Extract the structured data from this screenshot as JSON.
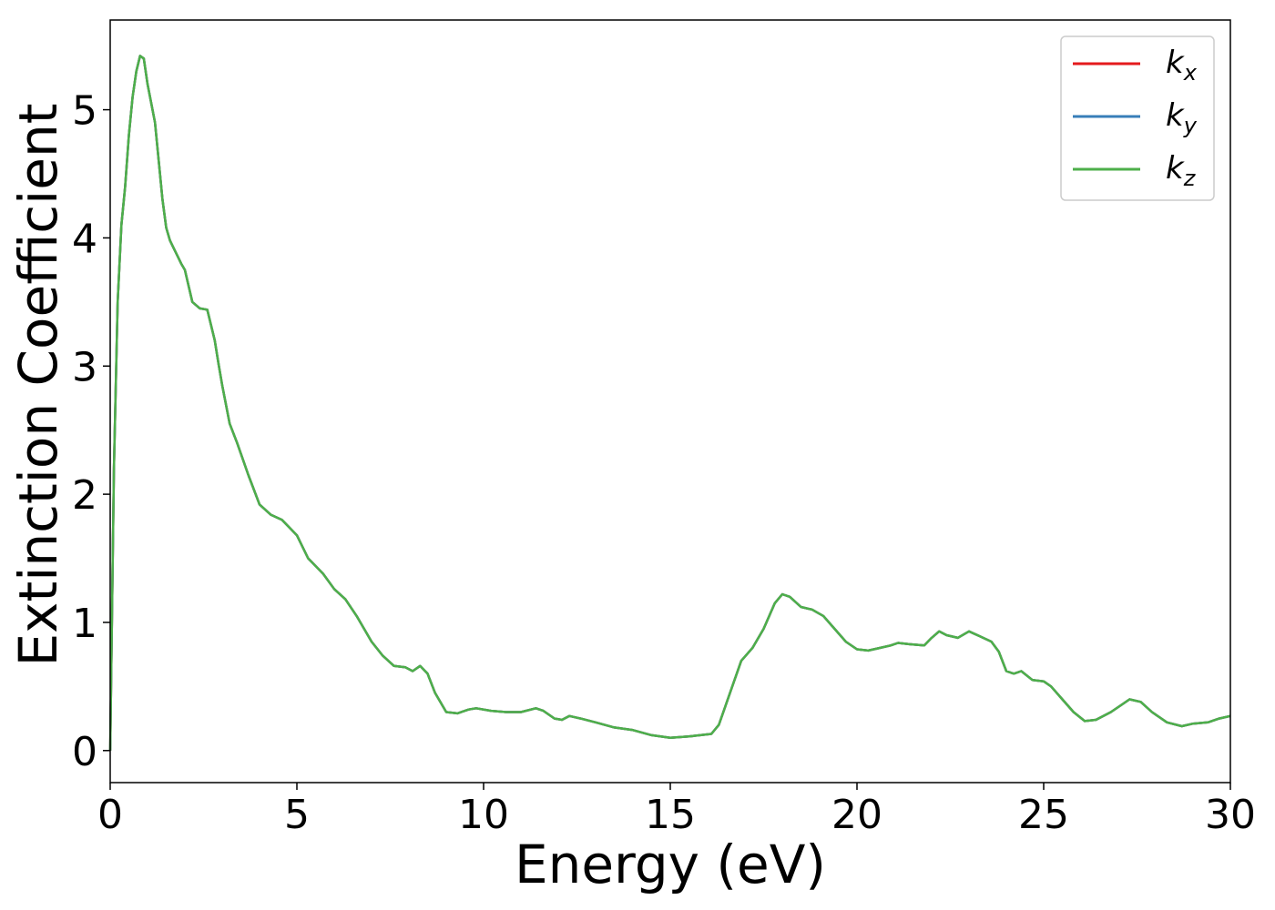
{
  "chart_data": {
    "type": "line",
    "xlabel": "Energy (eV)",
    "ylabel": "Extinction Coefficient",
    "xlim": [
      0,
      30
    ],
    "ylim": [
      -0.25,
      5.7
    ],
    "xticks": [
      0,
      5,
      10,
      15,
      20,
      25,
      30
    ],
    "yticks": [
      0,
      1,
      2,
      3,
      4,
      5
    ],
    "grid": false,
    "legend_position": "top-right",
    "series": [
      {
        "name": "k",
        "subscript": "x",
        "color": "#e41a1c",
        "values_ref": "shared"
      },
      {
        "name": "k",
        "subscript": "y",
        "color": "#377eb8",
        "values_ref": "shared"
      },
      {
        "name": "k",
        "subscript": "z",
        "color": "#4daf4a",
        "values_ref": "shared"
      }
    ],
    "x": [
      0,
      0.1,
      0.2,
      0.3,
      0.4,
      0.5,
      0.6,
      0.7,
      0.8,
      0.9,
      1.0,
      1.1,
      1.2,
      1.3,
      1.4,
      1.5,
      1.6,
      1.7,
      1.8,
      1.9,
      2.0,
      2.2,
      2.4,
      2.6,
      2.8,
      2.9,
      3.0,
      3.2,
      3.4,
      3.7,
      4.0,
      4.3,
      4.6,
      5.0,
      5.3,
      5.7,
      6.0,
      6.3,
      6.6,
      7.0,
      7.3,
      7.6,
      7.9,
      8.1,
      8.3,
      8.5,
      8.7,
      9.0,
      9.3,
      9.6,
      9.8,
      10.2,
      10.6,
      11.0,
      11.4,
      11.6,
      11.9,
      12.1,
      12.3,
      12.6,
      13.0,
      13.5,
      14.0,
      14.5,
      15.0,
      15.5,
      15.8,
      16.1,
      16.3,
      16.6,
      16.9,
      17.2,
      17.5,
      17.8,
      18.0,
      18.2,
      18.5,
      18.8,
      19.1,
      19.4,
      19.7,
      20.0,
      20.3,
      20.6,
      20.9,
      21.1,
      21.4,
      21.8,
      22.0,
      22.2,
      22.4,
      22.7,
      23.0,
      23.3,
      23.6,
      23.8,
      24.0,
      24.2,
      24.4,
      24.7,
      25.0,
      25.2,
      25.5,
      25.8,
      26.1,
      26.4,
      26.8,
      27.1,
      27.3,
      27.6,
      27.9,
      28.3,
      28.7,
      29.0,
      29.4,
      29.7,
      30.0
    ],
    "values": [
      0.0,
      2.2,
      3.5,
      4.1,
      4.4,
      4.8,
      5.1,
      5.3,
      5.42,
      5.4,
      5.2,
      5.05,
      4.9,
      4.6,
      4.3,
      4.08,
      3.98,
      3.92,
      3.86,
      3.8,
      3.75,
      3.5,
      3.45,
      3.44,
      3.2,
      3.02,
      2.85,
      2.55,
      2.4,
      2.15,
      1.92,
      1.84,
      1.8,
      1.68,
      1.5,
      1.38,
      1.26,
      1.18,
      1.05,
      0.85,
      0.74,
      0.66,
      0.65,
      0.62,
      0.66,
      0.6,
      0.45,
      0.3,
      0.29,
      0.32,
      0.33,
      0.31,
      0.3,
      0.3,
      0.33,
      0.31,
      0.25,
      0.24,
      0.27,
      0.25,
      0.22,
      0.18,
      0.16,
      0.12,
      0.1,
      0.11,
      0.12,
      0.13,
      0.2,
      0.45,
      0.7,
      0.8,
      0.95,
      1.15,
      1.22,
      1.2,
      1.12,
      1.1,
      1.05,
      0.95,
      0.85,
      0.79,
      0.78,
      0.8,
      0.82,
      0.84,
      0.83,
      0.82,
      0.88,
      0.93,
      0.9,
      0.88,
      0.93,
      0.89,
      0.85,
      0.77,
      0.62,
      0.6,
      0.62,
      0.55,
      0.54,
      0.5,
      0.4,
      0.3,
      0.23,
      0.24,
      0.3,
      0.36,
      0.4,
      0.38,
      0.3,
      0.22,
      0.19,
      0.21,
      0.22,
      0.25,
      0.27
    ]
  }
}
